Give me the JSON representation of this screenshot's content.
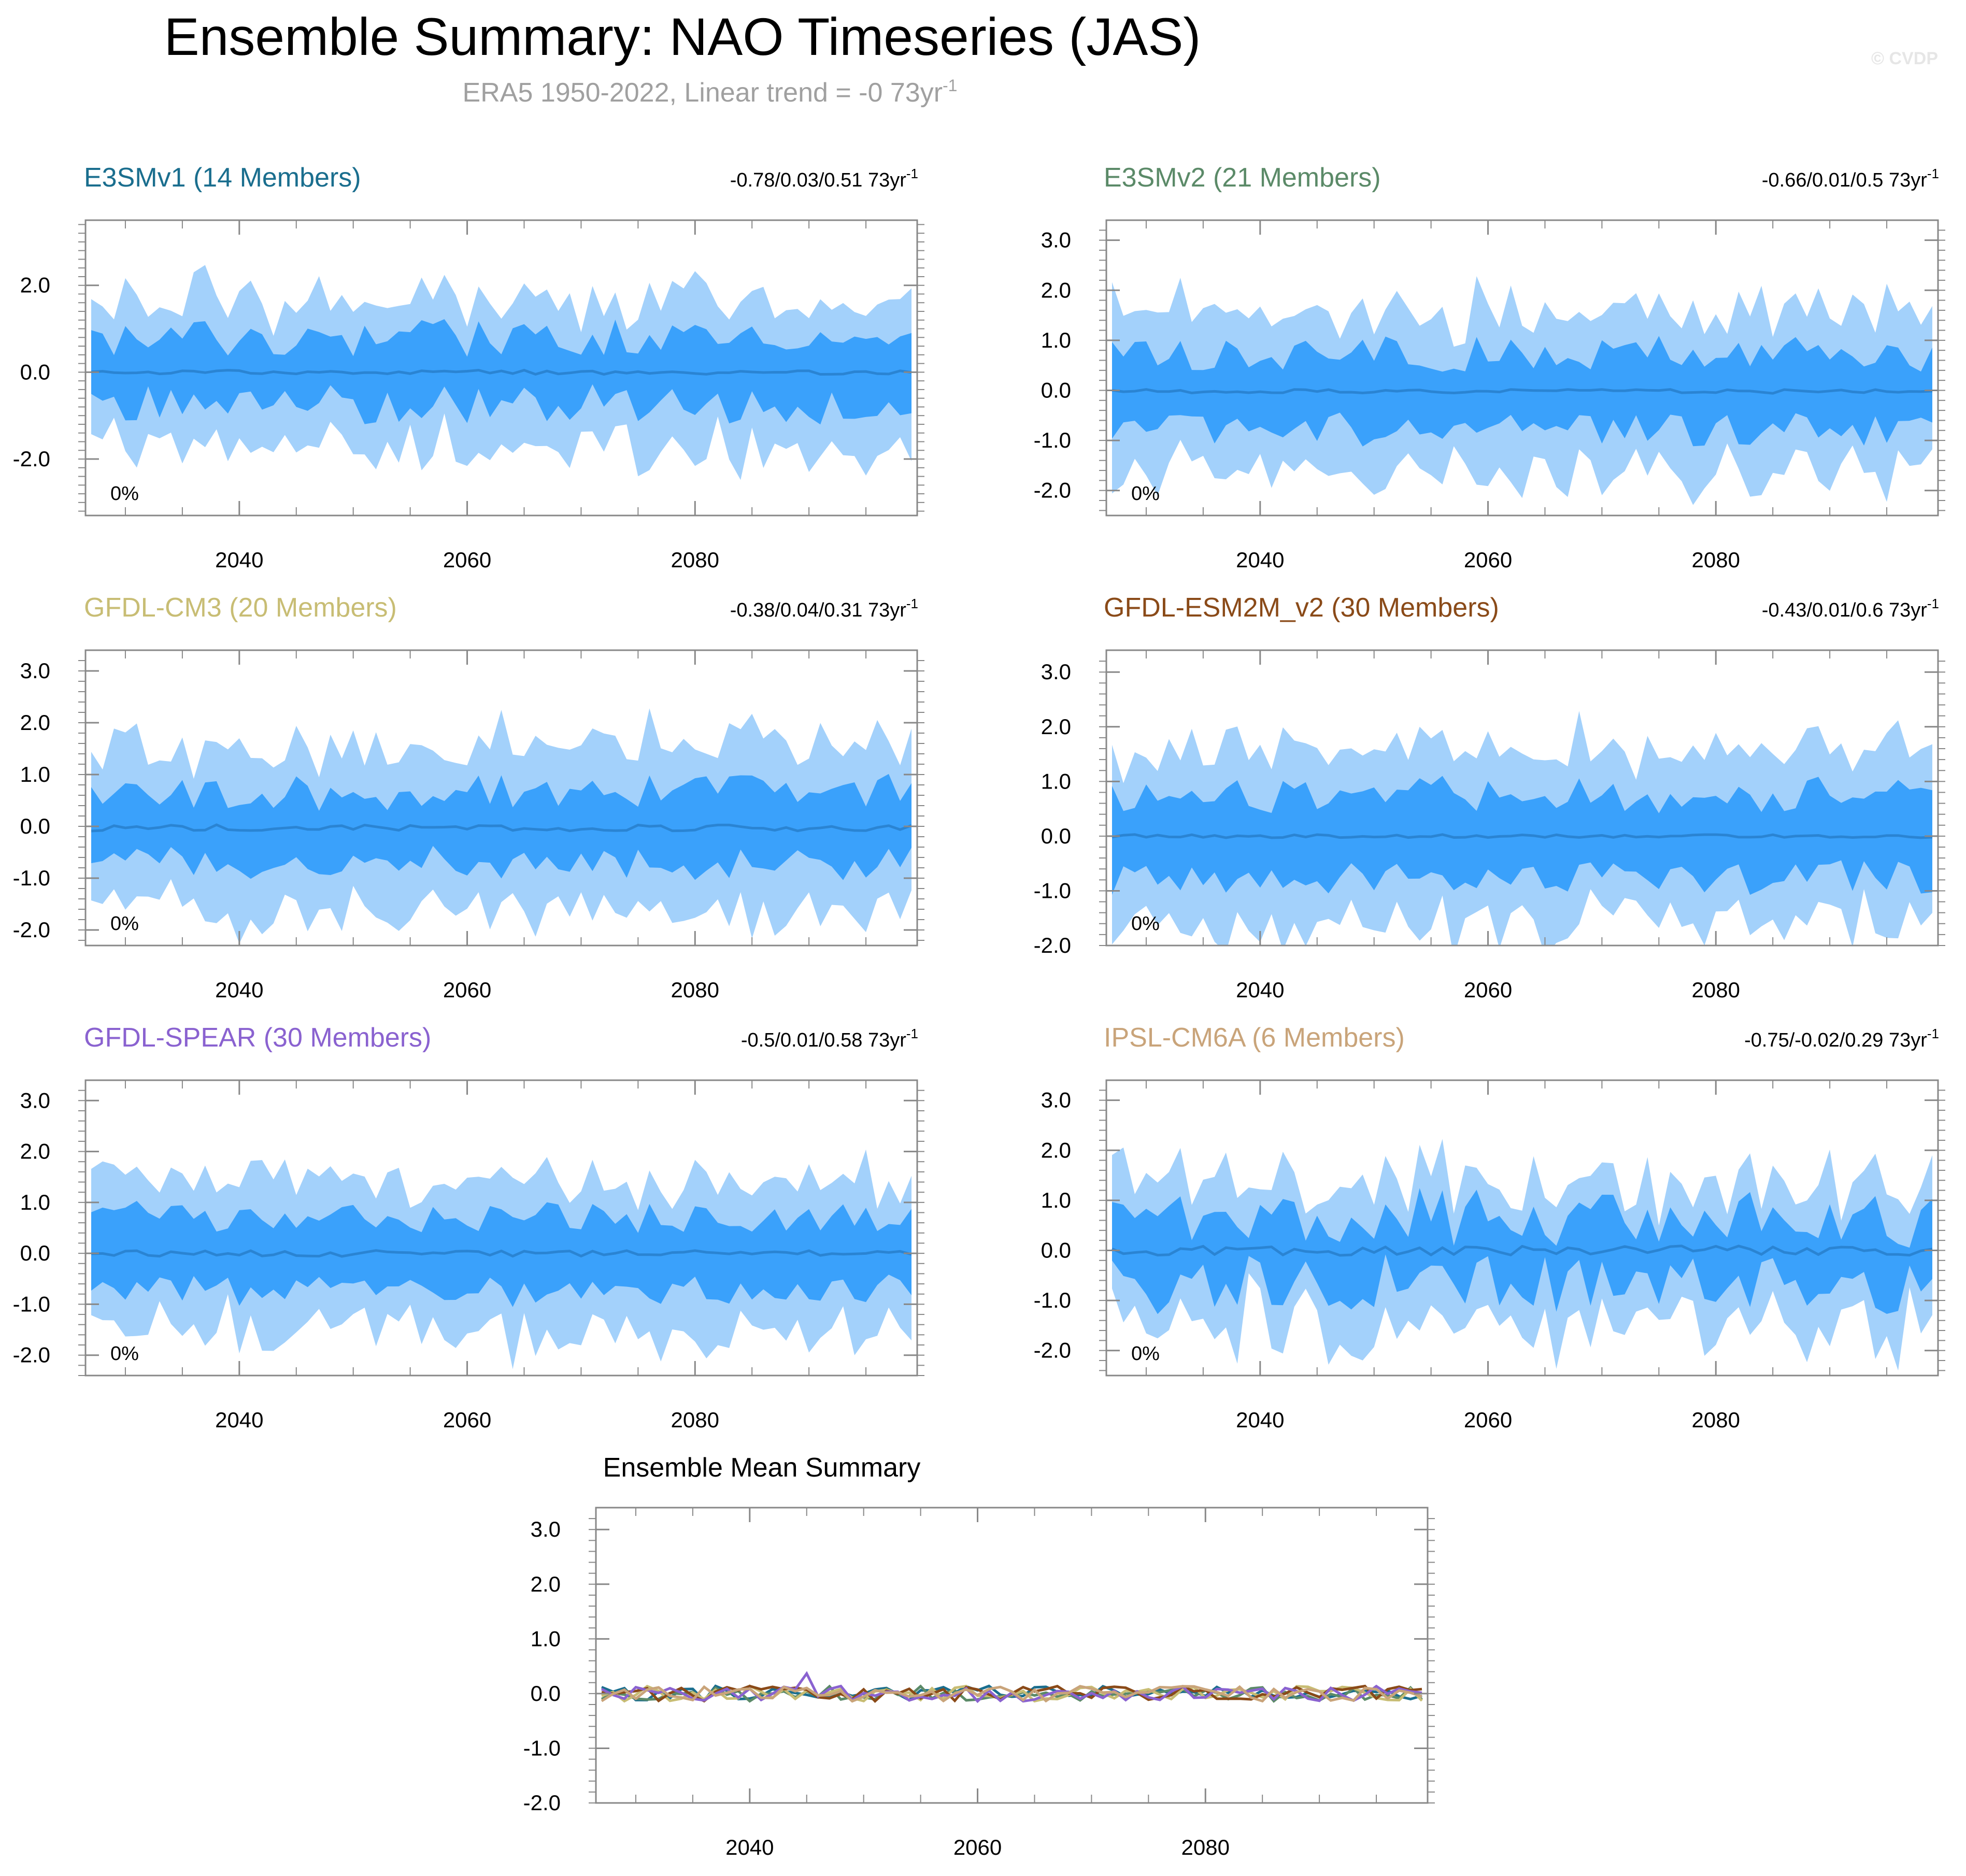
{
  "header": {
    "title": "Ensemble Summary: NAO Timeseries (JAS)",
    "subtitle_prefix": "ERA5 1950-2022, Linear trend = -0 73yr",
    "subtitle_sup": "-1",
    "watermark": "© CVDP"
  },
  "colors": {
    "outer_band": "#a3d1fb",
    "inner_band": "#3aa1fb",
    "mean_line": "#2a84d3",
    "subtitle": "#a0a0a0",
    "watermark": "#e6e6e6",
    "axis": "#888888"
  },
  "x_ticks": [
    "2040",
    "2060",
    "2080"
  ],
  "chart_data": [
    {
      "type": "area",
      "panel": "E3SMv1",
      "title": "E3SMv1 (14 Members)",
      "title_color": "#1a6e8e",
      "trend_text": "-0.78/0.03/0.51 73yr",
      "trend_sup": "-1",
      "pct_label": "0%",
      "xlim": [
        2026.5,
        2099.5
      ],
      "ylim": [
        -3.3,
        3.5
      ],
      "y_ticks": [
        "2.0",
        "0.0",
        "-2.0"
      ],
      "y_tick_values": [
        2,
        0,
        -2
      ],
      "seed": 1,
      "mean": 0.0,
      "mean_amp": 0.05,
      "inner": 0.75,
      "outer": 1.5,
      "noise": 0.45
    },
    {
      "type": "area",
      "panel": "E3SMv2",
      "title": "E3SMv2 (21 Members)",
      "title_color": "#5b8a68",
      "trend_text": "-0.66/0.01/0.5 73yr",
      "trend_sup": "-1",
      "pct_label": "0%",
      "xlim": [
        2026.5,
        2099.5
      ],
      "ylim": [
        -2.5,
        3.4
      ],
      "y_ticks": [
        "3.0",
        "2.0",
        "1.0",
        "0.0",
        "-1.0",
        "-2.0"
      ],
      "y_tick_values": [
        3,
        2,
        1,
        0,
        -1,
        -2
      ],
      "seed": 2,
      "mean": -0.02,
      "mean_amp": 0.04,
      "inner": 0.75,
      "outer": 1.45,
      "noise": 0.35
    },
    {
      "type": "area",
      "panel": "GFDL-CM3",
      "title": "GFDL-CM3 (20 Members)",
      "title_color": "#c8bd74",
      "trend_text": "-0.38/0.04/0.31 73yr",
      "trend_sup": "-1",
      "pct_label": "0%",
      "xlim": [
        2026.5,
        2099.5
      ],
      "ylim": [
        -2.3,
        3.4
      ],
      "y_ticks": [
        "3.0",
        "2.0",
        "1.0",
        "0.0",
        "-1.0",
        "-2.0"
      ],
      "y_tick_values": [
        3,
        2,
        1,
        0,
        -1,
        -2
      ],
      "seed": 3,
      "mean": -0.03,
      "mean_amp": 0.06,
      "inner": 0.7,
      "outer": 1.5,
      "noise": 0.35
    },
    {
      "type": "area",
      "panel": "GFDL-ESM2M_v2",
      "title": "GFDL-ESM2M_v2 (30 Members)",
      "title_color": "#8a4a18",
      "trend_text": "-0.43/0.01/0.6 73yr",
      "trend_sup": "-1",
      "pct_label": "0%",
      "xlim": [
        2026.5,
        2099.5
      ],
      "ylim": [
        -2.0,
        3.4
      ],
      "y_ticks": [
        "3.0",
        "2.0",
        "1.0",
        "0.0",
        "-1.0",
        "-2.0"
      ],
      "y_tick_values": [
        3,
        2,
        1,
        0,
        -1,
        -2
      ],
      "seed": 4,
      "mean": 0.0,
      "mean_amp": 0.03,
      "inner": 0.75,
      "outer": 1.4,
      "noise": 0.33
    },
    {
      "type": "area",
      "panel": "GFDL-SPEAR",
      "title": "GFDL-SPEAR (30 Members)",
      "title_color": "#8a62d0",
      "trend_text": "-0.5/0.01/0.58 73yr",
      "trend_sup": "-1",
      "pct_label": "0%",
      "xlim": [
        2026.5,
        2099.5
      ],
      "ylim": [
        -2.4,
        3.4
      ],
      "y_ticks": [
        "3.0",
        "2.0",
        "1.0",
        "0.0",
        "-1.0",
        "-2.0"
      ],
      "y_tick_values": [
        3,
        2,
        1,
        0,
        -1,
        -2
      ],
      "seed": 5,
      "mean": 0.0,
      "mean_amp": 0.06,
      "inner": 0.7,
      "outer": 1.3,
      "noise": 0.3
    },
    {
      "type": "area",
      "panel": "IPSL-CM6A",
      "title": "IPSL-CM6A (6 Members)",
      "title_color": "#c9a47a",
      "trend_text": "-0.75/-0.02/0.29 73yr",
      "trend_sup": "-1",
      "pct_label": "0%",
      "xlim": [
        2026.5,
        2099.5
      ],
      "ylim": [
        -2.5,
        3.4
      ],
      "y_ticks": [
        "3.0",
        "2.0",
        "1.0",
        "0.0",
        "-1.0",
        "-2.0"
      ],
      "y_tick_values": [
        3,
        2,
        1,
        0,
        -1,
        -2
      ],
      "seed": 6,
      "mean": 0.0,
      "mean_amp": 0.1,
      "inner": 0.65,
      "outer": 1.25,
      "noise": 0.55
    },
    {
      "type": "line",
      "panel": "Ensemble Mean",
      "title": "Ensemble Mean Summary",
      "title_color": "#000000",
      "xlim": [
        2026.5,
        2099.5
      ],
      "ylim": [
        -2.0,
        3.4
      ],
      "y_ticks": [
        "3.0",
        "2.0",
        "1.0",
        "0.0",
        "-1.0",
        "-2.0"
      ],
      "y_tick_values": [
        3,
        2,
        1,
        0,
        -1,
        -2
      ],
      "series": [
        {
          "name": "E3SMv1",
          "color": "#1a6e8e",
          "seed": 11
        },
        {
          "name": "E3SMv2",
          "color": "#5b8a68",
          "seed": 12
        },
        {
          "name": "GFDL-CM3",
          "color": "#c8bd74",
          "seed": 13
        },
        {
          "name": "GFDL-ESM2M_v2",
          "color": "#8a4a18",
          "seed": 14
        },
        {
          "name": "GFDL-SPEAR",
          "color": "#8a62d0",
          "seed": 15
        },
        {
          "name": "IPSL-CM6A",
          "color": "#c9a47a",
          "seed": 16
        }
      ]
    }
  ]
}
